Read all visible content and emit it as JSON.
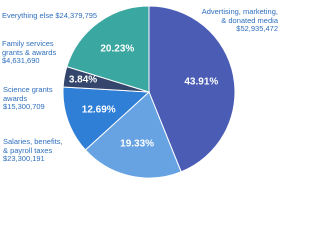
{
  "chart_data": {
    "type": "pie",
    "categories": [
      "Advertising, marketing, & donated media",
      "Salaries, benefits, & payroll taxes",
      "Science grants awards",
      "Family services grants & awards",
      "Everything else"
    ],
    "amount_labels": [
      "$52,935,472",
      "$23,300,191",
      "$15,300,709",
      "$4,631,690",
      "$24,379,795"
    ],
    "values": [
      43.91,
      19.33,
      12.69,
      3.84,
      20.23
    ],
    "value_labels": [
      "43.91%",
      "19.33%",
      "12.69%",
      "3.84%",
      "20.23%"
    ],
    "colors": [
      "#4a5cb4",
      "#67a3e2",
      "#2f7fd6",
      "#34466c",
      "#3aa7a0"
    ]
  }
}
